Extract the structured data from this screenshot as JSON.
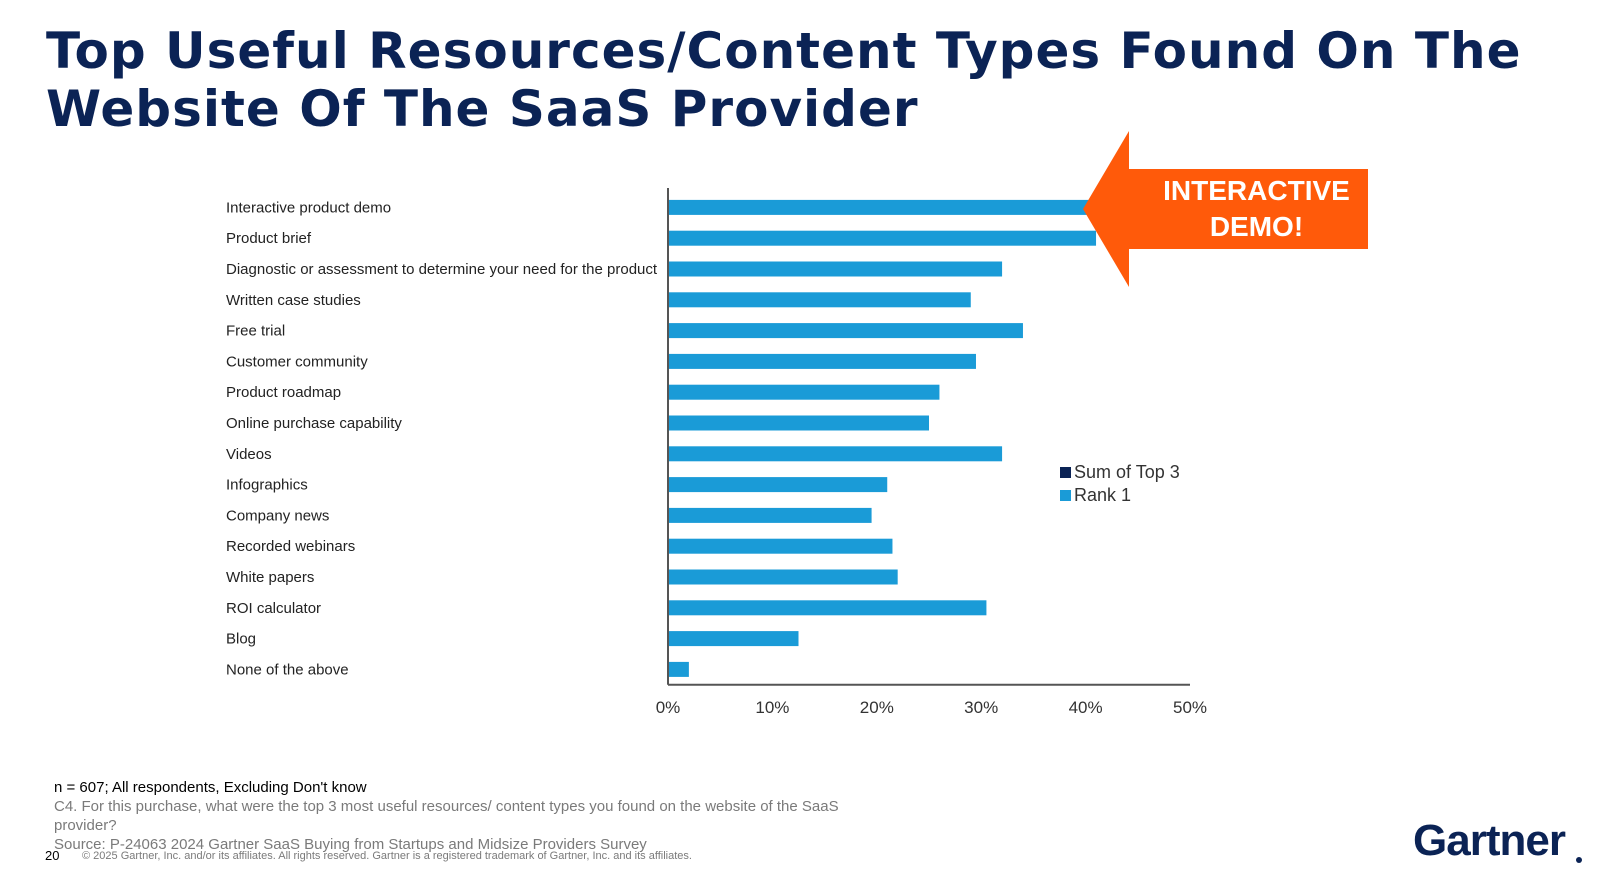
{
  "slide": {
    "title": "Top Useful Resources/Content Types Found On The Website Of The SaaS Provider",
    "page_number": "20"
  },
  "callout": {
    "text": "INTERACTIVE\nDEMO!",
    "color": "#ff5a0a"
  },
  "footnotes": {
    "sample": "n = 607; All respondents, Excluding Don't know",
    "question": "C4. For this purchase, what were the top 3 most useful resources/ content types you found on the website of the SaaS provider?",
    "source": "Source: P-24063 2024 Gartner SaaS Buying from Startups and Midsize Providers Survey",
    "copyright": "© 2025 Gartner, Inc. and/or its affiliates. All rights reserved. Gartner is a registered trademark of Gartner, Inc. and its affiliates."
  },
  "brand": {
    "logo": "Gartner",
    "navy": "#0b2355"
  },
  "chart_data": {
    "type": "bar",
    "orientation": "horizontal",
    "categories": [
      "Interactive product demo",
      "Product brief",
      "Diagnostic or assessment to determine your need for the product",
      "Written case studies",
      "Free trial",
      "Customer community",
      "Product roadmap",
      "Online purchase capability",
      "Videos",
      "Infographics",
      "Company news",
      "Recorded webinars",
      "White papers",
      "ROI calculator",
      "Blog",
      "None of the above"
    ],
    "series": [
      {
        "name": "Rank 1",
        "color": "#1a9bd7",
        "values": [
          43,
          41,
          32,
          29,
          34,
          29.5,
          26,
          25,
          32,
          21,
          19.5,
          21.5,
          22,
          30.5,
          12.5,
          2
        ]
      }
    ],
    "legend": [
      {
        "name": "Sum of Top 3",
        "color": "#0b2355"
      },
      {
        "name": "Rank 1",
        "color": "#1a9bd7"
      }
    ],
    "legend_position": "right",
    "xlim": [
      0,
      50
    ],
    "xticks": [
      "0%",
      "10%",
      "20%",
      "30%",
      "40%",
      "50%"
    ],
    "xlabel": "",
    "ylabel": "",
    "title": ""
  }
}
